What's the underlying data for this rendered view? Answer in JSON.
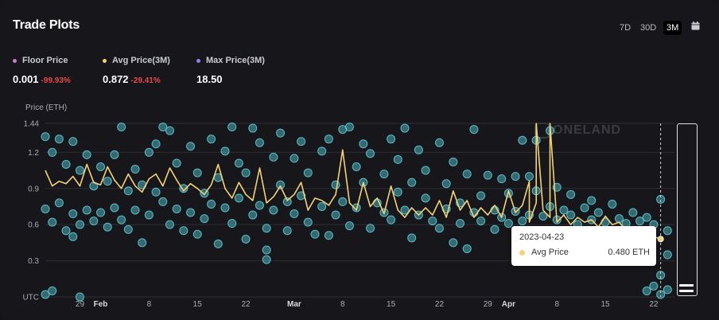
{
  "header": {
    "title": "Trade Plots",
    "ranges": [
      "7D",
      "30D",
      "3M"
    ],
    "active_range": "3M",
    "calendar_icon": "calendar-icon"
  },
  "stats": [
    {
      "label": "Floor Price",
      "value": "0.001",
      "change": "-99.93%",
      "color": "#c97ad1"
    },
    {
      "label": "Avg Price(3M)",
      "value": "0.872",
      "change": "-29.41%",
      "color": "#f3d27a"
    },
    {
      "label": "Max Price(3M)",
      "value": "18.50",
      "change": "",
      "color": "#8c82f0"
    }
  ],
  "watermark": "ONELAND",
  "tooltip": {
    "date": "2023-04-23",
    "series": "Avg Price",
    "value": "0.480 ETH"
  },
  "chart_data": {
    "type": "scatter",
    "ylabel": "Price (ETH)",
    "ylim": [
      0,
      1.44
    ],
    "y_ticks": [
      0,
      0.3,
      0.6,
      0.9,
      1.2,
      1.44
    ],
    "y_tick_labels": [
      "UTC",
      "0.3",
      "0.6",
      "0.9",
      "1.2",
      "1.44"
    ],
    "x_range": [
      "2023-01-24",
      "2023-04-25"
    ],
    "x_ticks": [
      {
        "date": "2023-01-29",
        "label": "29",
        "bold": false
      },
      {
        "date": "2023-02-01",
        "label": "Feb",
        "bold": true
      },
      {
        "date": "2023-02-08",
        "label": "8",
        "bold": false
      },
      {
        "date": "2023-02-15",
        "label": "15",
        "bold": false
      },
      {
        "date": "2023-02-22",
        "label": "22",
        "bold": false
      },
      {
        "date": "2023-03-01",
        "label": "Mar",
        "bold": true
      },
      {
        "date": "2023-03-08",
        "label": "8",
        "bold": false
      },
      {
        "date": "2023-03-15",
        "label": "15",
        "bold": false
      },
      {
        "date": "2023-03-22",
        "label": "22",
        "bold": false
      },
      {
        "date": "2023-03-29",
        "label": "29",
        "bold": false
      },
      {
        "date": "2023-04-01",
        "label": "Apr",
        "bold": true
      },
      {
        "date": "2023-04-08",
        "label": "8",
        "bold": false
      },
      {
        "date": "2023-04-15",
        "label": "15",
        "bold": false
      },
      {
        "date": "2023-04-22",
        "label": "22",
        "bold": false
      }
    ],
    "trades_color": "#5ccbd8",
    "avg_color": "#f3d27a",
    "trade_points": [
      [
        "2023-01-24",
        1.33
      ],
      [
        "2023-01-24",
        0.73
      ],
      [
        "2023-01-24",
        0.02
      ],
      [
        "2023-01-25",
        0.05
      ],
      [
        "2023-01-25",
        1.2
      ],
      [
        "2023-01-25",
        0.62
      ],
      [
        "2023-01-26",
        1.31
      ],
      [
        "2023-01-26",
        0.78
      ],
      [
        "2023-01-27",
        1.1
      ],
      [
        "2023-01-27",
        0.55
      ],
      [
        "2023-01-28",
        1.29
      ],
      [
        "2023-01-28",
        0.69
      ],
      [
        "2023-01-28",
        0.5
      ],
      [
        "2023-01-29",
        0.6
      ],
      [
        "2023-01-29",
        1.05
      ],
      [
        "2023-01-29",
        0.0
      ],
      [
        "2023-01-30",
        1.18
      ],
      [
        "2023-01-30",
        0.72
      ],
      [
        "2023-01-31",
        0.92
      ],
      [
        "2023-01-31",
        0.63
      ],
      [
        "2023-02-01",
        1.08
      ],
      [
        "2023-02-01",
        0.7
      ],
      [
        "2023-02-02",
        0.58
      ],
      [
        "2023-02-02",
        0.96
      ],
      [
        "2023-02-03",
        1.18
      ],
      [
        "2023-02-03",
        0.74
      ],
      [
        "2023-02-04",
        1.41
      ],
      [
        "2023-02-04",
        0.64
      ],
      [
        "2023-02-05",
        0.88
      ],
      [
        "2023-02-05",
        0.56
      ],
      [
        "2023-02-06",
        1.06
      ],
      [
        "2023-02-06",
        0.72
      ],
      [
        "2023-02-07",
        0.45
      ],
      [
        "2023-02-07",
        0.93
      ],
      [
        "2023-02-08",
        1.2
      ],
      [
        "2023-02-08",
        0.68
      ],
      [
        "2023-02-09",
        0.87
      ],
      [
        "2023-02-09",
        1.27
      ],
      [
        "2023-02-10",
        1.41
      ],
      [
        "2023-02-10",
        0.79
      ],
      [
        "2023-02-11",
        1.38
      ],
      [
        "2023-02-11",
        0.6
      ],
      [
        "2023-02-12",
        1.11
      ],
      [
        "2023-02-12",
        0.73
      ],
      [
        "2023-02-13",
        0.55
      ],
      [
        "2023-02-13",
        0.9
      ],
      [
        "2023-02-14",
        1.25
      ],
      [
        "2023-02-14",
        0.7
      ],
      [
        "2023-02-15",
        0.52
      ],
      [
        "2023-02-15",
        1.03
      ],
      [
        "2023-02-16",
        0.65
      ],
      [
        "2023-02-16",
        0.86
      ],
      [
        "2023-02-17",
        1.31
      ],
      [
        "2023-02-17",
        0.77
      ],
      [
        "2023-02-18",
        0.44
      ],
      [
        "2023-02-18",
        0.99
      ],
      [
        "2023-02-19",
        1.21
      ],
      [
        "2023-02-19",
        0.74
      ],
      [
        "2023-02-20",
        1.41
      ],
      [
        "2023-02-20",
        0.61
      ],
      [
        "2023-02-21",
        1.11
      ],
      [
        "2023-02-21",
        0.82
      ],
      [
        "2023-02-22",
        0.48
      ],
      [
        "2023-02-22",
        1.03
      ],
      [
        "2023-02-23",
        0.68
      ],
      [
        "2023-02-23",
        1.4
      ],
      [
        "2023-02-24",
        1.28
      ],
      [
        "2023-02-24",
        0.76
      ],
      [
        "2023-02-25",
        0.57
      ],
      [
        "2023-02-25",
        0.31
      ],
      [
        "2023-02-25",
        0.39
      ],
      [
        "2023-02-26",
        1.16
      ],
      [
        "2023-02-26",
        0.72
      ],
      [
        "2023-02-27",
        0.93
      ],
      [
        "2023-02-27",
        1.36
      ],
      [
        "2023-02-28",
        0.55
      ],
      [
        "2023-02-28",
        0.79
      ],
      [
        "2023-03-01",
        1.15
      ],
      [
        "2023-03-01",
        0.69
      ],
      [
        "2023-03-02",
        1.29
      ],
      [
        "2023-03-02",
        0.84
      ],
      [
        "2023-03-03",
        0.62
      ],
      [
        "2023-03-03",
        1.03
      ],
      [
        "2023-03-04",
        0.52
      ],
      [
        "2023-03-05",
        1.21
      ],
      [
        "2023-03-05",
        0.75
      ],
      [
        "2023-03-06",
        1.31
      ],
      [
        "2023-03-06",
        0.51
      ],
      [
        "2023-03-07",
        0.93
      ],
      [
        "2023-03-07",
        0.68
      ],
      [
        "2023-03-08",
        1.39
      ],
      [
        "2023-03-08",
        0.79
      ],
      [
        "2023-03-09",
        1.41
      ],
      [
        "2023-03-09",
        0.59
      ],
      [
        "2023-03-10",
        1.08
      ],
      [
        "2023-03-10",
        0.74
      ],
      [
        "2023-03-11",
        0.95
      ],
      [
        "2023-03-11",
        1.27
      ],
      [
        "2023-03-12",
        0.57
      ],
      [
        "2023-03-12",
        1.19
      ],
      [
        "2023-03-13",
        0.78
      ],
      [
        "2023-03-14",
        1.02
      ],
      [
        "2023-03-14",
        0.7
      ],
      [
        "2023-03-15",
        1.31
      ],
      [
        "2023-03-15",
        0.64
      ],
      [
        "2023-03-16",
        0.87
      ],
      [
        "2023-03-16",
        1.14
      ],
      [
        "2023-03-17",
        0.72
      ],
      [
        "2023-03-17",
        1.4
      ],
      [
        "2023-03-18",
        0.49
      ],
      [
        "2023-03-18",
        0.95
      ],
      [
        "2023-03-19",
        1.22
      ],
      [
        "2023-03-19",
        0.68
      ],
      [
        "2023-03-20",
        0.82
      ],
      [
        "2023-03-20",
        1.05
      ],
      [
        "2023-03-21",
        0.63
      ],
      [
        "2023-03-22",
        1.28
      ],
      [
        "2023-03-22",
        0.57
      ],
      [
        "2023-03-23",
        0.94
      ],
      [
        "2023-03-23",
        0.73
      ],
      [
        "2023-03-24",
        0.45
      ],
      [
        "2023-03-24",
        1.12
      ],
      [
        "2023-03-25",
        0.78
      ],
      [
        "2023-03-25",
        0.61
      ],
      [
        "2023-03-26",
        1.02
      ],
      [
        "2023-03-26",
        0.4
      ],
      [
        "2023-03-27",
        0.7
      ],
      [
        "2023-03-27",
        1.39
      ],
      [
        "2023-03-28",
        0.84
      ],
      [
        "2023-03-28",
        0.63
      ],
      [
        "2023-03-29",
        1.01
      ],
      [
        "2023-03-30",
        0.72
      ],
      [
        "2023-03-30",
        0.56
      ],
      [
        "2023-03-31",
        0.98
      ],
      [
        "2023-03-31",
        0.66
      ],
      [
        "2023-04-01",
        0.61
      ],
      [
        "2023-04-01",
        0.86
      ],
      [
        "2023-04-02",
        1.0
      ],
      [
        "2023-04-02",
        0.71
      ],
      [
        "2023-04-03",
        1.3
      ],
      [
        "2023-04-03",
        0.63
      ],
      [
        "2023-04-04",
        1.0
      ],
      [
        "2023-04-04",
        0.68
      ],
      [
        "2023-04-05",
        0.88
      ],
      [
        "2023-04-05",
        1.3
      ],
      [
        "2023-04-06",
        0.67
      ],
      [
        "2023-04-07",
        1.38
      ],
      [
        "2023-04-07",
        0.75
      ],
      [
        "2023-04-08",
        0.64
      ],
      [
        "2023-04-08",
        0.91
      ],
      [
        "2023-04-09",
        0.72
      ],
      [
        "2023-04-10",
        0.68
      ],
      [
        "2023-04-10",
        0.85
      ],
      [
        "2023-04-11",
        0.6
      ],
      [
        "2023-04-12",
        0.74
      ],
      [
        "2023-04-13",
        0.64
      ],
      [
        "2023-04-13",
        0.8
      ],
      [
        "2023-04-14",
        0.7
      ],
      [
        "2023-04-15",
        0.62
      ],
      [
        "2023-04-16",
        0.77
      ],
      [
        "2023-04-17",
        0.65
      ],
      [
        "2023-04-18",
        0.61
      ],
      [
        "2023-04-19",
        0.7
      ],
      [
        "2023-04-20",
        0.63
      ],
      [
        "2023-04-21",
        0.66
      ],
      [
        "2023-04-21",
        0.05
      ],
      [
        "2023-04-22",
        0.09
      ],
      [
        "2023-04-22",
        0.6
      ],
      [
        "2023-04-23",
        0.02
      ],
      [
        "2023-04-23",
        0.18
      ],
      [
        "2023-04-23",
        0.81
      ],
      [
        "2023-04-24",
        0.06
      ],
      [
        "2023-04-24",
        0.35
      ],
      [
        "2023-04-24",
        0.55
      ]
    ],
    "avg_points": [
      [
        "2023-01-24",
        1.05
      ],
      [
        "2023-01-25",
        0.92
      ],
      [
        "2023-01-26",
        0.96
      ],
      [
        "2023-01-27",
        0.94
      ],
      [
        "2023-01-28",
        1.0
      ],
      [
        "2023-01-29",
        0.92
      ],
      [
        "2023-01-30",
        1.1
      ],
      [
        "2023-01-31",
        0.95
      ],
      [
        "2023-02-01",
        0.93
      ],
      [
        "2023-02-02",
        1.08
      ],
      [
        "2023-02-03",
        0.97
      ],
      [
        "2023-02-04",
        0.9
      ],
      [
        "2023-02-05",
        1.02
      ],
      [
        "2023-02-06",
        0.92
      ],
      [
        "2023-02-07",
        0.87
      ],
      [
        "2023-02-08",
        0.98
      ],
      [
        "2023-02-09",
        1.02
      ],
      [
        "2023-02-10",
        0.92
      ],
      [
        "2023-02-11",
        1.07
      ],
      [
        "2023-02-12",
        0.97
      ],
      [
        "2023-02-13",
        0.88
      ],
      [
        "2023-02-14",
        0.94
      ],
      [
        "2023-02-15",
        0.9
      ],
      [
        "2023-02-16",
        0.85
      ],
      [
        "2023-02-17",
        0.93
      ],
      [
        "2023-02-18",
        1.1
      ],
      [
        "2023-02-19",
        0.9
      ],
      [
        "2023-02-20",
        0.82
      ],
      [
        "2023-02-21",
        0.95
      ],
      [
        "2023-02-22",
        0.85
      ],
      [
        "2023-02-23",
        0.8
      ],
      [
        "2023-02-24",
        1.07
      ],
      [
        "2023-02-25",
        0.78
      ],
      [
        "2023-02-26",
        0.83
      ],
      [
        "2023-02-27",
        0.92
      ],
      [
        "2023-02-28",
        0.8
      ],
      [
        "2023-03-01",
        0.85
      ],
      [
        "2023-03-02",
        0.95
      ],
      [
        "2023-03-03",
        0.72
      ],
      [
        "2023-03-04",
        0.82
      ],
      [
        "2023-03-05",
        0.8
      ],
      [
        "2023-03-06",
        0.76
      ],
      [
        "2023-03-07",
        0.85
      ],
      [
        "2023-03-08",
        1.22
      ],
      [
        "2023-03-09",
        0.78
      ],
      [
        "2023-03-10",
        0.72
      ],
      [
        "2023-03-11",
        0.95
      ],
      [
        "2023-03-12",
        0.75
      ],
      [
        "2023-03-13",
        0.82
      ],
      [
        "2023-03-14",
        0.69
      ],
      [
        "2023-03-15",
        0.92
      ],
      [
        "2023-03-16",
        0.72
      ],
      [
        "2023-03-17",
        0.66
      ],
      [
        "2023-03-18",
        0.74
      ],
      [
        "2023-03-19",
        0.68
      ],
      [
        "2023-03-20",
        0.74
      ],
      [
        "2023-03-21",
        0.68
      ],
      [
        "2023-03-22",
        0.8
      ],
      [
        "2023-03-23",
        0.66
      ],
      [
        "2023-03-24",
        0.88
      ],
      [
        "2023-03-25",
        0.72
      ],
      [
        "2023-03-26",
        0.8
      ],
      [
        "2023-03-27",
        0.66
      ],
      [
        "2023-03-28",
        0.74
      ],
      [
        "2023-03-29",
        0.68
      ],
      [
        "2023-03-30",
        0.76
      ],
      [
        "2023-03-31",
        0.66
      ],
      [
        "2023-04-01",
        0.88
      ],
      [
        "2023-04-02",
        0.7
      ],
      [
        "2023-04-03",
        0.76
      ],
      [
        "2023-04-04",
        0.96
      ],
      [
        "2023-04-04",
        0.62
      ],
      [
        "2023-04-05",
        0.78
      ],
      [
        "2023-04-05",
        1.44
      ],
      [
        "2023-04-06",
        0.72
      ],
      [
        "2023-04-07",
        0.66
      ],
      [
        "2023-04-07",
        1.44
      ],
      [
        "2023-04-08",
        0.62
      ],
      [
        "2023-04-09",
        0.68
      ],
      [
        "2023-04-10",
        0.6
      ],
      [
        "2023-04-11",
        0.66
      ],
      [
        "2023-04-12",
        0.62
      ],
      [
        "2023-04-13",
        0.64
      ],
      [
        "2023-04-14",
        0.58
      ],
      [
        "2023-04-15",
        0.67
      ],
      [
        "2023-04-16",
        0.6
      ],
      [
        "2023-04-17",
        0.62
      ],
      [
        "2023-04-18",
        0.55
      ],
      [
        "2023-04-19",
        0.58
      ],
      [
        "2023-04-20",
        0.52
      ],
      [
        "2023-04-21",
        0.54
      ],
      [
        "2023-04-22",
        0.5
      ],
      [
        "2023-04-23",
        0.48
      ]
    ],
    "highlight": {
      "date": "2023-04-23",
      "value": 0.48
    },
    "cursor_date": "2023-04-23"
  }
}
